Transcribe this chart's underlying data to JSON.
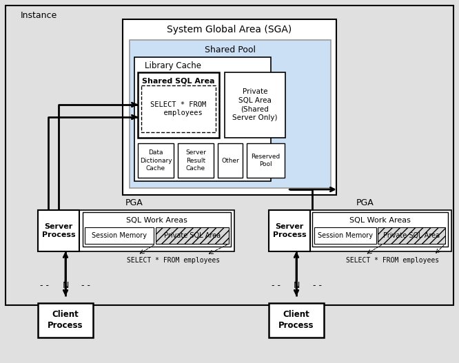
{
  "bg_color": "#e0e0e0",
  "white": "#ffffff",
  "light_blue": "#cce0f5",
  "light_gray": "#c8c8c8",
  "hatch_gray": "#d8d8d8",
  "title": "Instance",
  "sga_label": "System Global Area (SGA)",
  "shared_pool_label": "Shared Pool",
  "library_cache_label": "Library Cache",
  "shared_sql_area_label": "Shared SQL Area",
  "shared_sql_content": "SELECT * FROM\n  employees",
  "private_sql_label": "Private\nSQL Area\n(Shared\nServer Only)",
  "data_dict_label": "Data\nDictionary\nCache",
  "server_result_label": "Server\nResult\nCache",
  "other_label": "Other",
  "reserved_pool_label": "Reserved\nPool",
  "pga_label": "PGA",
  "sql_work_areas_label": "SQL Work Areas",
  "session_memory_label": "Session Memory",
  "private_sql_area_label": "Private SQL Area",
  "server_process_label": "Server\nProcess",
  "select_label": "SELECT * FROM employees",
  "client_process_label": "Client\nProcess"
}
